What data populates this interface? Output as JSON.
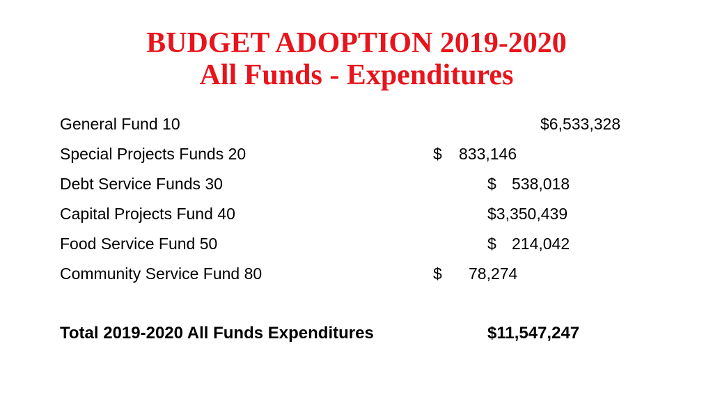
{
  "title": {
    "line1": "BUDGET ADOPTION 2019-2020",
    "line2": "All Funds - Expenditures"
  },
  "rows": [
    {
      "label": "General Fund 10",
      "amount": "$6,533,328"
    },
    {
      "label": "Special Projects Funds 20",
      "currency": "$",
      "amount": "833,146"
    },
    {
      "label": "Debt Service Funds 30",
      "currency": "$",
      "amount": "538,018"
    },
    {
      "label": "Capital Projects Fund 40",
      "amount": "$3,350,439"
    },
    {
      "label": "Food Service Fund 50",
      "currency": "$",
      "amount": "214,042"
    },
    {
      "label": "Community Service Fund 80",
      "currency": "$",
      "amount": "78,274"
    }
  ],
  "total": {
    "label": "Total 2019-2020 All Funds Expenditures",
    "amount": "$11,547,247"
  },
  "colors": {
    "title": "#e8131b",
    "text": "#000000",
    "background": "#ffffff"
  }
}
